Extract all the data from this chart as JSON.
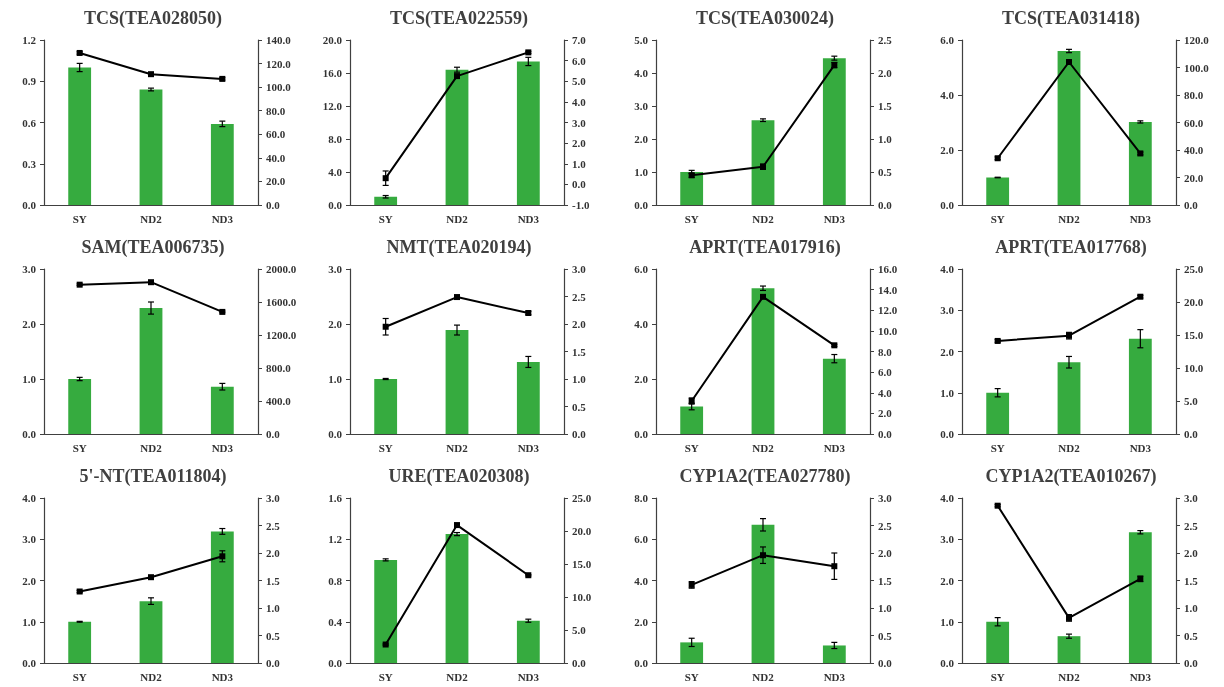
{
  "chart_data": [
    {
      "type": "bar",
      "title": "TCS(TEA028050)",
      "categories": [
        "SY",
        "ND2",
        "ND3"
      ],
      "marker": "square",
      "ylim": [
        0,
        1.2
      ],
      "yticks": [
        {
          "value": 0,
          "label": "0.0"
        },
        0.3,
        0.6,
        0.9,
        1.2
      ],
      "y2lim": [
        0,
        140
      ],
      "y2ticks": [
        {
          "value": 0,
          "label": "0.0"
        },
        {
          "value": 20,
          "label": "20.0"
        },
        {
          "value": 40,
          "label": "40.0"
        },
        {
          "value": 60,
          "label": "60.0"
        },
        {
          "value": 80,
          "label": "80.0"
        },
        {
          "value": 100,
          "label": "100.0"
        },
        {
          "value": 120,
          "label": "120.0"
        },
        {
          "value": 140,
          "label": "140.0"
        }
      ],
      "series": [
        {
          "color": "#36ab3f",
          "values": [
            1.0,
            0.84,
            0.59
          ],
          "errors": [
            0.03,
            0.01,
            0.02
          ]
        },
        {
          "type": "line",
          "axis": "y2",
          "color": "#000000",
          "values": [
            129,
            111,
            107
          ],
          "errors": [
            1,
            1,
            1
          ]
        }
      ]
    },
    {
      "type": "bar",
      "title": "TCS(TEA022559)",
      "categories": [
        "SY",
        "ND2",
        "ND3"
      ],
      "marker": "square",
      "ylim": [
        0,
        20
      ],
      "yticks": [
        {
          "value": 0,
          "label": "0.0"
        },
        {
          "value": 4,
          "label": "4.0"
        },
        {
          "value": 8,
          "label": "8.0"
        },
        {
          "value": 12,
          "label": "12.0"
        },
        {
          "value": 16,
          "label": "16.0"
        },
        {
          "value": 20,
          "label": "20.0"
        }
      ],
      "y2lim": [
        -1,
        7
      ],
      "y2ticks": [
        {
          "value": -1,
          "label": "-1.0"
        },
        {
          "value": 0,
          "label": "0.0"
        },
        {
          "value": 1,
          "label": "1.0"
        },
        {
          "value": 2,
          "label": "2.0"
        },
        {
          "value": 3,
          "label": "3.0"
        },
        {
          "value": 4,
          "label": "4.0"
        },
        {
          "value": 5,
          "label": "5.0"
        },
        {
          "value": 6,
          "label": "6.0"
        },
        {
          "value": 7,
          "label": "7.0"
        }
      ],
      "series": [
        {
          "color": "#36ab3f",
          "values": [
            1.0,
            16.4,
            17.4
          ],
          "errors": [
            0.15,
            0.3,
            0.5
          ]
        },
        {
          "type": "line",
          "axis": "y2",
          "color": "#000000",
          "values": [
            0.3,
            5.25,
            6.4
          ],
          "errors": [
            0.35,
            0.05,
            0.05
          ]
        }
      ]
    },
    {
      "type": "bar",
      "title": "TCS(TEA030024)",
      "categories": [
        "SY",
        "ND2",
        "ND3"
      ],
      "marker": "square",
      "ylim": [
        0,
        5
      ],
      "yticks": [
        {
          "value": 0,
          "label": "0.0"
        },
        {
          "value": 1,
          "label": "1.0"
        },
        {
          "value": 2,
          "label": "2.0"
        },
        {
          "value": 3,
          "label": "3.0"
        },
        {
          "value": 4,
          "label": "4.0"
        },
        {
          "value": 5,
          "label": "5.0"
        }
      ],
      "y2lim": [
        0,
        2.5
      ],
      "y2ticks": [
        {
          "value": 0,
          "label": "0.0"
        },
        0.5,
        {
          "value": 1,
          "label": "1.0"
        },
        1.5,
        {
          "value": 2,
          "label": "2.0"
        },
        2.5
      ],
      "series": [
        {
          "color": "#36ab3f",
          "values": [
            1.0,
            2.57,
            4.45
          ],
          "errors": [
            0.05,
            0.04,
            0.06
          ]
        },
        {
          "type": "line",
          "axis": "y2",
          "color": "#000000",
          "values": [
            0.45,
            0.58,
            2.12
          ],
          "errors": [
            0.03,
            0.04,
            0.04
          ]
        }
      ]
    },
    {
      "type": "bar",
      "title": "TCS(TEA031418)",
      "categories": [
        "SY",
        "ND2",
        "ND3"
      ],
      "marker": "square",
      "ylim": [
        0,
        6
      ],
      "yticks": [
        {
          "value": 0,
          "label": "0.0"
        },
        {
          "value": 2,
          "label": "2.0"
        },
        {
          "value": 4,
          "label": "4.0"
        },
        {
          "value": 6,
          "label": "6.0"
        }
      ],
      "y2lim": [
        0,
        120
      ],
      "y2ticks": [
        {
          "value": 0,
          "label": "0.0"
        },
        {
          "value": 20,
          "label": "20.0"
        },
        {
          "value": 40,
          "label": "40.0"
        },
        {
          "value": 60,
          "label": "60.0"
        },
        {
          "value": 80,
          "label": "80.0"
        },
        {
          "value": 100,
          "label": "100.0"
        },
        {
          "value": 120,
          "label": "120.0"
        }
      ],
      "series": [
        {
          "color": "#36ab3f",
          "values": [
            1.0,
            5.6,
            3.02
          ],
          "errors": [
            0.01,
            0.06,
            0.04
          ]
        },
        {
          "type": "line",
          "axis": "y2",
          "color": "#000000",
          "values": [
            34,
            104,
            37.5
          ],
          "errors": [
            1,
            1,
            1
          ]
        }
      ]
    },
    {
      "type": "bar",
      "title": "SAM(TEA006735)",
      "categories": [
        "SY",
        "ND2",
        "ND3"
      ],
      "marker": "square",
      "ylim": [
        0,
        3
      ],
      "yticks": [
        {
          "value": 0,
          "label": "0.0"
        },
        {
          "value": 1,
          "label": "1.0"
        },
        {
          "value": 2,
          "label": "2.0"
        },
        {
          "value": 3,
          "label": "3.0"
        }
      ],
      "y2lim": [
        0,
        2000
      ],
      "y2ticks": [
        {
          "value": 0,
          "label": "0.0"
        },
        {
          "value": 400,
          "label": "400.0"
        },
        {
          "value": 800,
          "label": "800.0"
        },
        {
          "value": 1200,
          "label": "1200.0"
        },
        {
          "value": 1600,
          "label": "1600.0"
        },
        {
          "value": 2000,
          "label": "2000.0"
        }
      ],
      "series": [
        {
          "color": "#36ab3f",
          "values": [
            1.0,
            2.29,
            0.86
          ],
          "errors": [
            0.03,
            0.11,
            0.06
          ]
        },
        {
          "type": "line",
          "axis": "y2",
          "color": "#000000",
          "values": [
            1810,
            1840,
            1480
          ],
          "errors": [
            10,
            10,
            10
          ]
        }
      ]
    },
    {
      "type": "bar",
      "title": "NMT(TEA020194)",
      "categories": [
        "SY",
        "ND2",
        "ND3"
      ],
      "marker": "square",
      "ylim": [
        0,
        3
      ],
      "yticks": [
        {
          "value": 0,
          "label": "0.0"
        },
        {
          "value": 1,
          "label": "1.0"
        },
        {
          "value": 2,
          "label": "2.0"
        },
        {
          "value": 3,
          "label": "3.0"
        }
      ],
      "y2lim": [
        0,
        3
      ],
      "y2ticks": [
        {
          "value": 0,
          "label": "0.0"
        },
        0.5,
        {
          "value": 1,
          "label": "1.0"
        },
        1.5,
        {
          "value": 2,
          "label": "2.0"
        },
        2.5,
        {
          "value": 3,
          "label": "3.0"
        }
      ],
      "series": [
        {
          "color": "#36ab3f",
          "values": [
            1.0,
            1.89,
            1.31
          ],
          "errors": [
            0.01,
            0.09,
            0.1
          ]
        },
        {
          "type": "line",
          "axis": "y2",
          "color": "#000000",
          "values": [
            1.95,
            2.49,
            2.2
          ],
          "errors": [
            0.15,
            0.02,
            0.03
          ]
        }
      ]
    },
    {
      "type": "bar",
      "title": "APRT(TEA017916)",
      "categories": [
        "SY",
        "ND2",
        "ND3"
      ],
      "marker": "square",
      "ylim": [
        0,
        6
      ],
      "yticks": [
        {
          "value": 0,
          "label": "0.0"
        },
        {
          "value": 2,
          "label": "2.0"
        },
        {
          "value": 4,
          "label": "4.0"
        },
        {
          "value": 6,
          "label": "6.0"
        }
      ],
      "y2lim": [
        0,
        16
      ],
      "y2ticks": [
        {
          "value": 0,
          "label": "0.0"
        },
        {
          "value": 2,
          "label": "2.0"
        },
        {
          "value": 4,
          "label": "4.0"
        },
        {
          "value": 6,
          "label": "6.0"
        },
        {
          "value": 8,
          "label": "8.0"
        },
        {
          "value": 10,
          "label": "10.0"
        },
        {
          "value": 12,
          "label": "12.0"
        },
        {
          "value": 14,
          "label": "14.0"
        },
        {
          "value": 16,
          "label": "16.0"
        }
      ],
      "series": [
        {
          "color": "#36ab3f",
          "values": [
            1.0,
            5.3,
            2.74
          ],
          "errors": [
            0.12,
            0.08,
            0.15
          ]
        },
        {
          "type": "line",
          "axis": "y2",
          "color": "#000000",
          "values": [
            3.2,
            13.3,
            8.6
          ],
          "errors": [
            0.3,
            0.1,
            0.1
          ]
        }
      ]
    },
    {
      "type": "bar",
      "title": "APRT(TEA017768)",
      "categories": [
        "SY",
        "ND2",
        "ND3"
      ],
      "marker": "square",
      "ylim": [
        0,
        4
      ],
      "yticks": [
        {
          "value": 0,
          "label": "0.0"
        },
        {
          "value": 1,
          "label": "1.0"
        },
        {
          "value": 2,
          "label": "2.0"
        },
        {
          "value": 3,
          "label": "3.0"
        },
        {
          "value": 4,
          "label": "4.0"
        }
      ],
      "y2lim": [
        0,
        25
      ],
      "y2ticks": [
        {
          "value": 0,
          "label": "0.0"
        },
        {
          "value": 5,
          "label": "5.0"
        },
        {
          "value": 10,
          "label": "10.0"
        },
        {
          "value": 15,
          "label": "15.0"
        },
        {
          "value": 20,
          "label": "20.0"
        },
        {
          "value": 25,
          "label": "25.0"
        }
      ],
      "series": [
        {
          "color": "#36ab3f",
          "values": [
            1.0,
            1.74,
            2.31
          ],
          "errors": [
            0.1,
            0.14,
            0.22
          ]
        },
        {
          "type": "line",
          "axis": "y2",
          "color": "#000000",
          "values": [
            14.1,
            14.9,
            20.8
          ],
          "errors": [
            0.2,
            0.5,
            0.2
          ]
        }
      ]
    },
    {
      "type": "bar",
      "title": "5'-NT(TEA011804)",
      "categories": [
        "SY",
        "ND2",
        "ND3"
      ],
      "marker": "square",
      "ylim": [
        0,
        4
      ],
      "yticks": [
        {
          "value": 0,
          "label": "0.0"
        },
        {
          "value": 1,
          "label": "1.0"
        },
        {
          "value": 2,
          "label": "2.0"
        },
        {
          "value": 3,
          "label": "3.0"
        },
        {
          "value": 4,
          "label": "4.0"
        }
      ],
      "y2lim": [
        0,
        3
      ],
      "y2ticks": [
        {
          "value": 0,
          "label": "0.0"
        },
        0.5,
        {
          "value": 1,
          "label": "1.0"
        },
        1.5,
        {
          "value": 2,
          "label": "2.0"
        },
        2.5,
        {
          "value": 3,
          "label": "3.0"
        }
      ],
      "series": [
        {
          "color": "#36ab3f",
          "values": [
            1.0,
            1.5,
            3.19
          ],
          "errors": [
            0.01,
            0.08,
            0.07
          ]
        },
        {
          "type": "line",
          "axis": "y2",
          "color": "#000000",
          "values": [
            1.3,
            1.56,
            1.94
          ],
          "errors": [
            0.02,
            0.03,
            0.1
          ]
        }
      ]
    },
    {
      "type": "bar",
      "title": "URE(TEA020308)",
      "categories": [
        "SY",
        "ND2",
        "ND3"
      ],
      "marker": "square",
      "ylim": [
        0,
        1.6
      ],
      "yticks": [
        {
          "value": 0,
          "label": "0.0"
        },
        0.4,
        0.8,
        1.2,
        1.6
      ],
      "y2lim": [
        0,
        25
      ],
      "y2ticks": [
        {
          "value": 0,
          "label": "0.0"
        },
        {
          "value": 5,
          "label": "5.0"
        },
        {
          "value": 10,
          "label": "10.0"
        },
        {
          "value": 15,
          "label": "15.0"
        },
        {
          "value": 20,
          "label": "20.0"
        },
        {
          "value": 25,
          "label": "25.0"
        }
      ],
      "series": [
        {
          "color": "#36ab3f",
          "values": [
            1.0,
            1.25,
            0.41
          ],
          "errors": [
            0.01,
            0.015,
            0.015
          ]
        },
        {
          "type": "line",
          "axis": "y2",
          "color": "#000000",
          "values": [
            2.8,
            20.9,
            13.3
          ],
          "errors": [
            0.1,
            0.1,
            0.1
          ]
        }
      ]
    },
    {
      "type": "bar",
      "title": "CYP1A2(TEA027780)",
      "categories": [
        "SY",
        "ND2",
        "ND3"
      ],
      "marker": "square",
      "ylim": [
        0,
        8
      ],
      "yticks": [
        {
          "value": 0,
          "label": "0.0"
        },
        {
          "value": 2,
          "label": "2.0"
        },
        {
          "value": 4,
          "label": "4.0"
        },
        {
          "value": 6,
          "label": "6.0"
        },
        {
          "value": 8,
          "label": "8.0"
        }
      ],
      "y2lim": [
        0,
        3
      ],
      "y2ticks": [
        {
          "value": 0,
          "label": "0.0"
        },
        0.5,
        {
          "value": 1,
          "label": "1.0"
        },
        1.5,
        {
          "value": 2,
          "label": "2.0"
        },
        2.5,
        {
          "value": 3,
          "label": "3.0"
        }
      ],
      "series": [
        {
          "color": "#36ab3f",
          "values": [
            1.0,
            6.7,
            0.85
          ],
          "errors": [
            0.2,
            0.3,
            0.15
          ]
        },
        {
          "type": "line",
          "axis": "y2",
          "color": "#000000",
          "values": [
            1.42,
            1.96,
            1.76
          ],
          "errors": [
            0.06,
            0.15,
            0.24
          ]
        }
      ]
    },
    {
      "type": "bar",
      "title": "CYP1A2(TEA010267)",
      "categories": [
        "SY",
        "ND2",
        "ND3"
      ],
      "marker": "square",
      "ylim": [
        0,
        4
      ],
      "yticks": [
        {
          "value": 0,
          "label": "0.0"
        },
        {
          "value": 1,
          "label": "1.0"
        },
        {
          "value": 2,
          "label": "2.0"
        },
        {
          "value": 3,
          "label": "3.0"
        },
        {
          "value": 4,
          "label": "4.0"
        }
      ],
      "y2lim": [
        0,
        3
      ],
      "y2ticks": [
        {
          "value": 0,
          "label": "0.0"
        },
        0.5,
        {
          "value": 1,
          "label": "1.0"
        },
        1.5,
        {
          "value": 2,
          "label": "2.0"
        },
        2.5,
        {
          "value": 3,
          "label": "3.0"
        }
      ],
      "series": [
        {
          "color": "#36ab3f",
          "values": [
            1.0,
            0.65,
            3.17
          ],
          "errors": [
            0.1,
            0.05,
            0.04
          ]
        },
        {
          "type": "line",
          "axis": "y2",
          "color": "#000000",
          "values": [
            2.86,
            0.82,
            1.53
          ],
          "errors": [
            0.02,
            0.06,
            0.05
          ]
        }
      ]
    }
  ]
}
